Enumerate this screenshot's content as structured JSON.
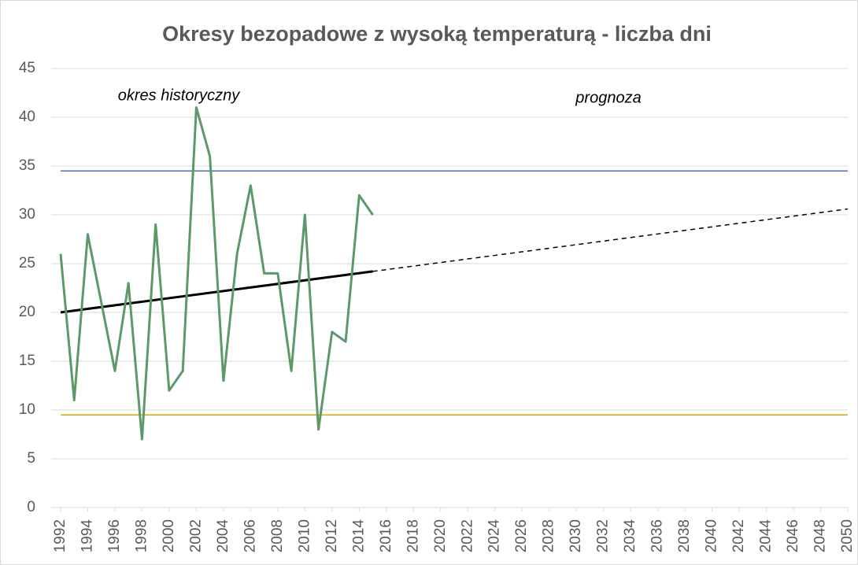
{
  "chart_data": {
    "type": "line",
    "title": "Okresy bezopadowe z wysoką temperaturą - liczba dni",
    "annotations": [
      "okres historyczny",
      "prognoza"
    ],
    "xlim": [
      1992,
      2050
    ],
    "xticks": [
      1992,
      1994,
      1996,
      1998,
      2000,
      2002,
      2004,
      2006,
      2008,
      2010,
      2012,
      2014,
      2016,
      2018,
      2020,
      2022,
      2024,
      2026,
      2028,
      2030,
      2032,
      2034,
      2036,
      2038,
      2040,
      2042,
      2044,
      2046,
      2048,
      2050
    ],
    "ylim": [
      0,
      45
    ],
    "yticks": [
      0,
      5,
      10,
      15,
      20,
      25,
      30,
      35,
      40,
      45
    ],
    "grid": true,
    "series": [
      {
        "color": "#5b9a68",
        "dash": false,
        "width": 3,
        "x": [
          1992,
          1993,
          1994,
          1995,
          1996,
          1997,
          1998,
          1999,
          2000,
          2001,
          2002,
          2003,
          2004,
          2005,
          2006,
          2007,
          2008,
          2009,
          2010,
          2011,
          2012,
          2013,
          2014,
          2015
        ],
        "values": [
          26,
          11,
          28,
          21,
          14,
          23,
          7,
          29,
          12,
          14,
          41,
          36,
          13,
          26,
          33,
          24,
          24,
          14,
          30,
          8,
          18,
          17,
          32,
          30
        ]
      },
      {
        "color": "#000000",
        "dash": false,
        "width": 3,
        "x": [
          1992,
          2015
        ],
        "values": [
          20,
          24.2
        ]
      },
      {
        "color": "#000000",
        "dash": true,
        "width": 1.5,
        "x": [
          2015,
          2050
        ],
        "values": [
          24.2,
          30.6
        ]
      },
      {
        "color": "#4472c4",
        "dash": false,
        "width": 1.5,
        "x": [
          1992,
          2050
        ],
        "values": [
          34.5,
          34.5
        ]
      },
      {
        "color": "#d4a900",
        "dash": false,
        "width": 1.5,
        "x": [
          1992,
          2050
        ],
        "values": [
          9.5,
          9.5
        ]
      }
    ]
  }
}
